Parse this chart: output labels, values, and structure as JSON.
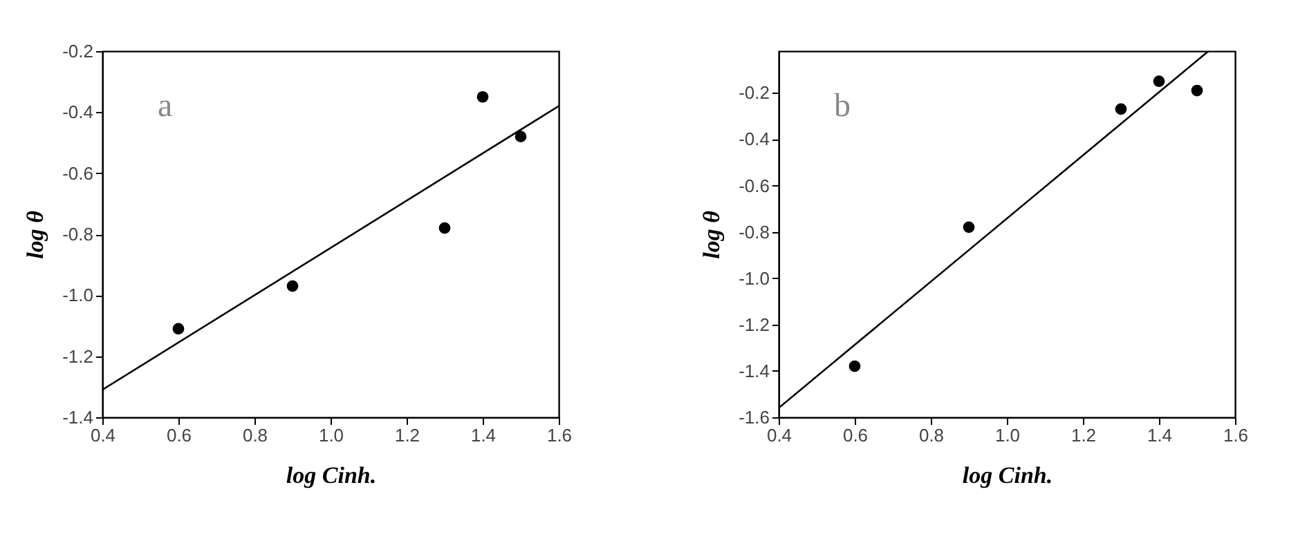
{
  "chart_data": [
    {
      "type": "scatter",
      "xlabel": "log Cinh.",
      "ylabel": "log θ",
      "annotations": [
        "a"
      ],
      "xlim": [
        0.4,
        1.6
      ],
      "xticks": [
        0.4,
        0.6,
        0.8,
        {
          "value": 1.0,
          "label": "1.0"
        },
        1.2,
        1.4,
        1.6
      ],
      "ylim": [
        -1.4,
        -0.2
      ],
      "yticks": [
        -1.4,
        -1.2,
        {
          "value": -1.0,
          "label": "-1.0"
        },
        -0.8,
        -0.6,
        -0.4,
        -0.2
      ],
      "grid": false,
      "series": [
        {
          "marker": "circle",
          "color": "#000000",
          "x": [
            0.6,
            0.9,
            1.3,
            1.4,
            1.5
          ],
          "values": [
            -1.11,
            -0.97,
            -0.78,
            -0.35,
            -0.48
          ]
        },
        {
          "type": "line",
          "marker": "none",
          "line_style": "solid",
          "color": "#000000",
          "x": [
            0.4,
            1.6
          ],
          "values": [
            -1.31,
            -0.38
          ]
        }
      ]
    },
    {
      "type": "scatter",
      "xlabel": "log Cinh.",
      "ylabel": "log θ",
      "annotations": [
        "b"
      ],
      "xlim": [
        0.4,
        1.6
      ],
      "xticks": [
        0.4,
        0.6,
        0.8,
        {
          "value": 1.0,
          "label": "1.0"
        },
        1.2,
        1.4,
        1.6
      ],
      "ylim": [
        -1.6,
        -0.02
      ],
      "yticks": [
        -1.6,
        -1.4,
        -1.2,
        {
          "value": -1.0,
          "label": "-1.0"
        },
        -0.8,
        -0.6,
        -0.4,
        -0.2
      ],
      "grid": false,
      "series": [
        {
          "marker": "circle",
          "color": "#000000",
          "x": [
            0.6,
            0.9,
            1.3,
            1.4,
            1.5
          ],
          "values": [
            -1.38,
            -0.78,
            -0.27,
            -0.15,
            -0.19
          ]
        },
        {
          "type": "line",
          "marker": "none",
          "line_style": "solid",
          "color": "#000000",
          "x": [
            0.4,
            1.53
          ],
          "values": [
            -1.56,
            -0.02
          ]
        }
      ]
    }
  ]
}
